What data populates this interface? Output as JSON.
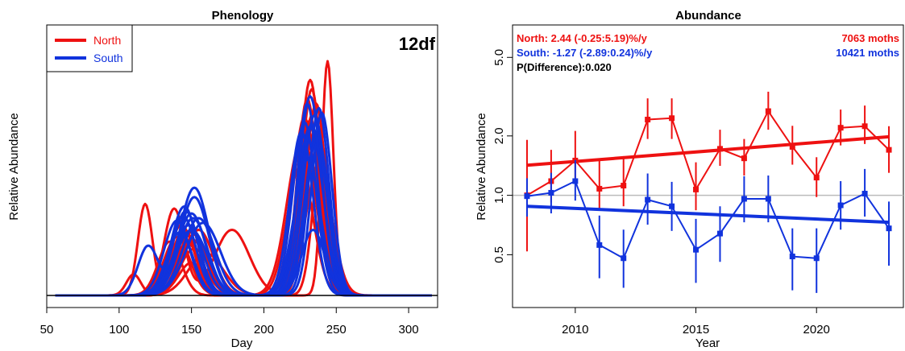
{
  "colors": {
    "north": "#ee1111",
    "south": "#1133dd",
    "axis": "#000000",
    "reference": "#bbbbbb"
  },
  "chart_data": [
    {
      "type": "line",
      "title": "Phenology",
      "xlabel": "Day",
      "ylabel": "Relative Abundance",
      "annotation": "12df",
      "xlim": [
        50,
        320
      ],
      "x_ticks": [
        50,
        100,
        150,
        200,
        250,
        300
      ],
      "y_ticks_labeled": false,
      "legend": {
        "position": "top-left",
        "entries": [
          {
            "name": "North",
            "color": "#ee1111"
          },
          {
            "name": "South",
            "color": "#1133dd"
          }
        ]
      },
      "curves": {
        "north": [
          [
            [
              110,
              0.09,
              5
            ],
            [
              150,
              0.14,
              9
            ],
            [
              232,
              0.92,
              7
            ]
          ],
          [
            [
              118,
              0.39,
              5
            ],
            [
              152,
              0.2,
              10
            ],
            [
              233,
              0.88,
              7
            ]
          ],
          [
            [
              138,
              0.37,
              7
            ],
            [
              178,
              0.28,
              12
            ],
            [
              230,
              0.62,
              8
            ]
          ],
          [
            [
              148,
              0.3,
              10
            ],
            [
              228,
              0.76,
              8
            ]
          ],
          [
            [
              145,
              0.28,
              9
            ],
            [
              236,
              0.82,
              7
            ]
          ],
          [
            [
              150,
              0.24,
              11
            ],
            [
              225,
              0.55,
              9
            ]
          ],
          [
            [
              155,
              0.28,
              10
            ],
            [
              240,
              0.64,
              6
            ]
          ],
          [
            [
              140,
              0.25,
              9
            ],
            [
              232,
              0.75,
              7
            ]
          ],
          [
            [
              152,
              0.26,
              9
            ],
            [
              244,
              1.0,
              4
            ]
          ],
          [
            [
              147,
              0.22,
              11
            ],
            [
              226,
              0.66,
              10
            ]
          ],
          [
            [
              160,
              0.18,
              12
            ],
            [
              235,
              0.7,
              8
            ]
          ],
          [
            [
              135,
              0.23,
              8
            ],
            [
              238,
              0.56,
              9
            ]
          ],
          [
            [
              150,
              0.27,
              9
            ],
            [
              230,
              0.84,
              7
            ]
          ],
          [
            [
              143,
              0.3,
              9
            ],
            [
              234,
              0.78,
              8
            ]
          ]
        ],
        "south": [
          [
            [
              120,
              0.21,
              7
            ],
            [
              152,
              0.46,
              10
            ],
            [
              232,
              0.85,
              8
            ]
          ],
          [
            [
              145,
              0.38,
              9
            ],
            [
              230,
              0.82,
              7
            ]
          ],
          [
            [
              150,
              0.35,
              10
            ],
            [
              235,
              0.77,
              8
            ]
          ],
          [
            [
              140,
              0.32,
              9
            ],
            [
              228,
              0.74,
              8
            ]
          ],
          [
            [
              155,
              0.33,
              11
            ],
            [
              238,
              0.8,
              7
            ]
          ],
          [
            [
              148,
              0.3,
              10
            ],
            [
              232,
              0.72,
              9
            ]
          ],
          [
            [
              152,
              0.42,
              10
            ],
            [
              240,
              0.78,
              7
            ]
          ],
          [
            [
              146,
              0.36,
              9
            ],
            [
              226,
              0.7,
              8
            ]
          ],
          [
            [
              158,
              0.31,
              12
            ],
            [
              236,
              0.66,
              8
            ]
          ],
          [
            [
              144,
              0.34,
              9
            ],
            [
              234,
              0.28,
              8
            ]
          ],
          [
            [
              150,
              0.28,
              11
            ],
            [
              230,
              0.58,
              9
            ]
          ],
          [
            [
              142,
              0.27,
              9
            ],
            [
              237,
              0.68,
              8
            ]
          ],
          [
            [
              151,
              0.33,
              10
            ],
            [
              233,
              0.73,
              8
            ]
          ]
        ]
      }
    },
    {
      "type": "line",
      "title": "Abundance",
      "xlabel": "Year",
      "ylabel": "Relative Abundance",
      "y_scale": "log",
      "ylim": [
        0.27,
        7.3
      ],
      "xlim": [
        2007.4,
        2023.6
      ],
      "x_ticks": [
        2010,
        2015,
        2020
      ],
      "y_ticks": [
        0.5,
        1.0,
        2.0,
        5.0
      ],
      "y_tick_labels": [
        "0.5",
        "1.0",
        "2.0",
        "5.0"
      ],
      "reference_line": 1.0,
      "stats": [
        {
          "text": "North: 2.44 (-0.25:5.19)%/y",
          "color": "#ee1111"
        },
        {
          "text": "South: -1.27 (-2.89:0.24)%/y",
          "color": "#1133dd"
        },
        {
          "text": "P(Difference):0.020",
          "color": "#000000"
        }
      ],
      "counts": [
        {
          "text": "7063 moths",
          "color": "#ee1111"
        },
        {
          "text": "10421 moths",
          "color": "#1133dd"
        }
      ],
      "series": [
        {
          "name": "North",
          "color": "#ee1111",
          "x": [
            2008,
            2009,
            2010,
            2011,
            2012,
            2013,
            2014,
            2015,
            2016,
            2017,
            2018,
            2019,
            2020,
            2021,
            2022,
            2023
          ],
          "values": [
            1.0,
            1.18,
            1.5,
            1.08,
            1.12,
            2.42,
            2.46,
            1.07,
            1.72,
            1.54,
            2.67,
            1.76,
            1.23,
            2.2,
            2.24,
            1.7
          ],
          "lower": [
            0.52,
            0.92,
            1.2,
            0.84,
            0.88,
            1.93,
            1.93,
            0.84,
            1.41,
            1.26,
            2.15,
            1.43,
            0.98,
            1.79,
            1.82,
            1.3
          ],
          "upper": [
            1.91,
            1.7,
            2.12,
            1.52,
            1.58,
            3.1,
            3.1,
            1.47,
            2.15,
            1.93,
            3.35,
            2.25,
            1.56,
            2.72,
            2.85,
            2.24
          ],
          "trend": [
            1.42,
            1.98
          ]
        },
        {
          "name": "South",
          "color": "#1133dd",
          "x": [
            2008,
            2009,
            2010,
            2011,
            2012,
            2013,
            2014,
            2015,
            2016,
            2017,
            2018,
            2019,
            2020,
            2021,
            2022,
            2023
          ],
          "values": [
            0.99,
            1.03,
            1.18,
            0.56,
            0.48,
            0.95,
            0.88,
            0.53,
            0.64,
            0.96,
            0.96,
            0.49,
            0.48,
            0.89,
            1.02,
            0.68
          ],
          "lower": [
            0.78,
            0.81,
            0.94,
            0.38,
            0.34,
            0.71,
            0.66,
            0.36,
            0.46,
            0.73,
            0.73,
            0.33,
            0.32,
            0.67,
            0.78,
            0.44
          ],
          "upper": [
            1.22,
            1.3,
            1.51,
            0.79,
            0.67,
            1.29,
            1.17,
            0.76,
            0.88,
            1.25,
            1.26,
            0.68,
            0.68,
            1.18,
            1.36,
            0.93
          ],
          "trend": [
            0.88,
            0.73
          ]
        }
      ]
    }
  ]
}
